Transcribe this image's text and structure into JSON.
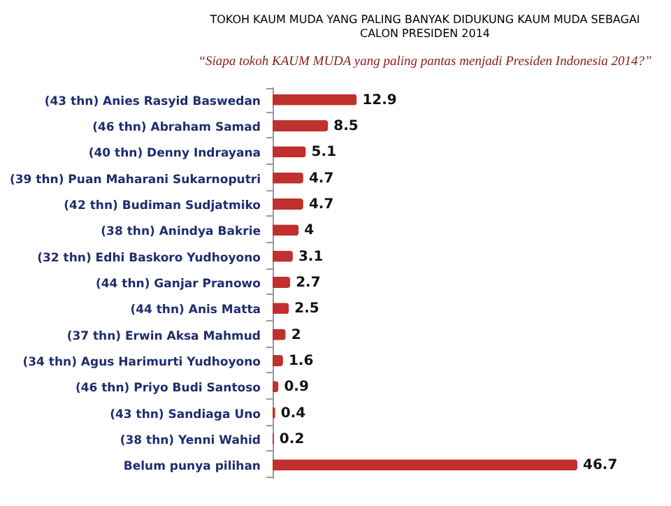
{
  "chart_data": {
    "type": "bar",
    "orientation": "horizontal",
    "relative": false,
    "data_labels": true,
    "title": "TOKOH KAUM MUDA YANG PALING BANYAK DIDUKUNG KAUM MUDA SEBAGAI CALON PRESIDEN 2014",
    "subtitle": "“Siapa tokoh KAUM MUDA yang paling pantas menjadi Presiden Indonesia 2014?”",
    "categories": [
      "(43 thn) Anies Rasyid Baswedan",
      "(46 thn) Abraham Samad",
      "(40 thn) Denny Indrayana",
      "(39 thn) Puan Maharani Sukarnoputri",
      "(42 thn) Budiman Sudjatmiko",
      "(38 thn) Anindya Bakrie",
      "(32 thn) Edhi Baskoro Yudhoyono",
      "(44 thn) Ganjar Pranowo",
      "(44 thn) Anis Matta",
      "(37 thn) Erwin Aksa Mahmud",
      "(34 thn) Agus Harimurti Yudhoyono",
      "(46 thn) Priyo Budi Santoso",
      "(43 thn) Sandiaga Uno",
      "(38 thn) Yenni Wahid",
      "Belum punya pilihan"
    ],
    "values": [
      12.9,
      8.5,
      5.1,
      4.7,
      4.7,
      4,
      3.1,
      2.7,
      2.5,
      2,
      1.6,
      0.9,
      0.4,
      0.2,
      46.7
    ],
    "color": "#c0302c",
    "grid": false
  }
}
